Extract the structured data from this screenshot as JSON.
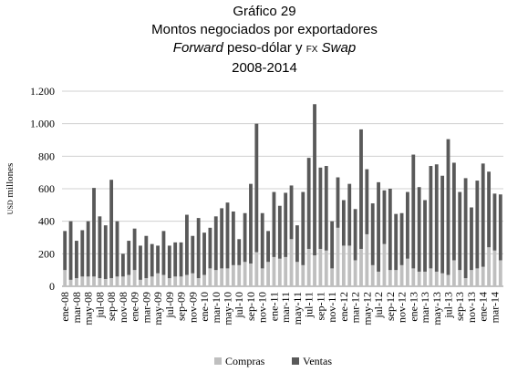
{
  "chart_data": {
    "type": "stacked-bar",
    "title": [
      "Gráfico 29",
      "Montos negociados por exportadores"
    ],
    "subtitle": [
      "Forward",
      " peso-dólar y ",
      "FX",
      " Swap"
    ],
    "period": "2008-2014",
    "y_label": [
      "USD",
      " millones"
    ],
    "categories": [
      "ene-08",
      null,
      "mar-08",
      null,
      "may-08",
      null,
      "jul-08",
      null,
      "sep-08",
      null,
      "nov-08",
      null,
      "ene-09",
      null,
      "mar-09",
      null,
      "may-09",
      null,
      "jul-09",
      null,
      "sep-09",
      null,
      "nov-09",
      null,
      "ene-10",
      null,
      "mar-10",
      null,
      "may-10",
      null,
      "jul-10",
      null,
      "sep-10",
      null,
      "nov-10",
      null,
      "ene-11",
      null,
      "mar-11",
      null,
      "may-11",
      null,
      "jul-11",
      null,
      "sep-11",
      null,
      "nov-11",
      null,
      "ene-12",
      null,
      "mar-12",
      null,
      "may-12",
      null,
      "jul-12",
      null,
      "sep-12",
      null,
      "nov-12",
      null,
      "ene-13",
      null,
      "mar-13",
      null,
      "may-13",
      null,
      "jul-13",
      null,
      "sep-13",
      null,
      "nov-13",
      null,
      "ene-14",
      null,
      "mar-14",
      null
    ],
    "series": [
      {
        "name": "Compras",
        "color": "#bfbfbf",
        "values": [
          100,
          40,
          50,
          60,
          60,
          60,
          50,
          45,
          50,
          60,
          60,
          70,
          100,
          40,
          50,
          60,
          80,
          70,
          50,
          60,
          60,
          70,
          80,
          50,
          70,
          110,
          100,
          110,
          110,
          130,
          130,
          150,
          140,
          210,
          110,
          150,
          180,
          170,
          180,
          290,
          150,
          130,
          230,
          190,
          230,
          220,
          110,
          360,
          250,
          250,
          160,
          230,
          320,
          130,
          90,
          260,
          100,
          100,
          130,
          170,
          110,
          90,
          90,
          110,
          90,
          80,
          70,
          160,
          100,
          50,
          100,
          110,
          120,
          240,
          220,
          160
        ]
      },
      {
        "name": "Ventas",
        "color": "#595959",
        "values": [
          240,
          360,
          230,
          285,
          340,
          545,
          380,
          330,
          605,
          340,
          140,
          210,
          255,
          210,
          260,
          200,
          170,
          270,
          200,
          210,
          210,
          370,
          230,
          370,
          260,
          250,
          330,
          370,
          405,
          330,
          160,
          300,
          490,
          790,
          340,
          190,
          400,
          325,
          395,
          330,
          225,
          450,
          560,
          930,
          500,
          520,
          290,
          310,
          280,
          380,
          315,
          735,
          400,
          380,
          550,
          330,
          500,
          345,
          320,
          410,
          700,
          520,
          440,
          630,
          660,
          600,
          835,
          600,
          480,
          615,
          385,
          540,
          635,
          465,
          350,
          405
        ]
      }
    ],
    "ylim": [
      0,
      1200
    ],
    "yticks": [
      0,
      200,
      400,
      600,
      800,
      {
        "value": 1000,
        "label": "1.000"
      },
      {
        "value": 1200,
        "label": "1.200"
      }
    ],
    "grid": true
  }
}
